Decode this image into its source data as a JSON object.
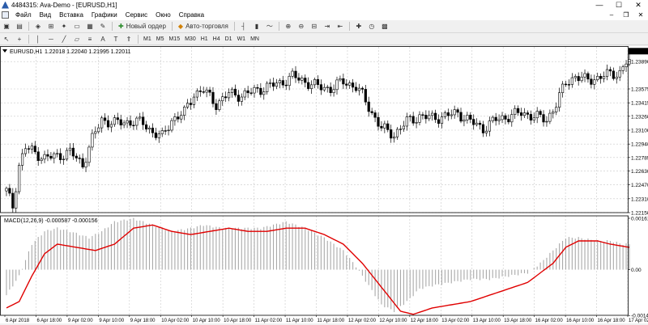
{
  "window": {
    "title": "4484315: Ava-Demo - [EURUSD,H1]",
    "minimize": "—",
    "maximize": "☐",
    "close": "✕"
  },
  "menu": [
    "Файл",
    "Вид",
    "Вставка",
    "Графики",
    "Сервис",
    "Окно",
    "Справка"
  ],
  "mdi": {
    "minimize": "–",
    "restore": "❐",
    "close": "✕"
  },
  "toolbar": {
    "new_order": "Новый ордер",
    "autotrading": "Авто-торговля"
  },
  "timeframes": [
    "M1",
    "M5",
    "M15",
    "M30",
    "H1",
    "H4",
    "D1",
    "W1",
    "MN"
  ],
  "icons": {
    "toolbar1": [
      "new-chart-icon",
      "profiles-icon",
      "market-watch-icon",
      "data-window-icon",
      "navigator-icon",
      "terminal-icon",
      "strategy-tester-icon",
      "metaeditor-icon",
      "zoom-in-icon",
      "zoom-out-icon",
      "tile-windows-icon",
      "bar-chart-icon",
      "candlestick-icon",
      "line-chart-icon",
      "indicators-icon",
      "periods-icon",
      "templates-icon"
    ],
    "toolbar2": [
      "cursor-icon",
      "crosshair-icon",
      "vertical-line-icon",
      "horizontal-line-icon",
      "trendline-icon",
      "channel-icon",
      "fibonacci-icon",
      "text-icon",
      "label-icon",
      "arrows-icon"
    ]
  },
  "colors": {
    "macd_signal": "#e00000",
    "histogram": "#a9a9a9",
    "candle": "#000000",
    "grid": "#c8c8c8"
  },
  "chart_data": {
    "type": "candlestick",
    "symbol_label": "EURUSD,H1",
    "ohlc_label": "1.22018 1.22040 1.21995 1.22011",
    "ylim": [
      1.2215,
      1.2405
    ],
    "price_ticks": [
      "1.23890",
      "1.23575",
      "1.23415",
      "1.23260",
      "1.23100",
      "1.22940",
      "1.22785",
      "1.22630",
      "1.22470",
      "1.22310",
      "1.22150"
    ],
    "time_labels": [
      "6 Apr 2018",
      "6 Apr 18:00",
      "9 Apr 02:00",
      "9 Apr 10:00",
      "9 Apr 18:00",
      "10 Apr 02:00",
      "10 Apr 10:00",
      "10 Apr 18:00",
      "11 Apr 02:00",
      "11 Apr 10:00",
      "11 Apr 18:00",
      "12 Apr 02:00",
      "12 Apr 10:00",
      "12 Apr 18:00",
      "13 Apr 02:00",
      "13 Apr 10:00",
      "13 Apr 18:00",
      "16 Apr 02:00",
      "16 Apr 10:00",
      "16 Apr 18:00",
      "17 Apr 02:00"
    ],
    "close_keypoints": [
      [
        0,
        1.224
      ],
      [
        2,
        1.2222
      ],
      [
        4,
        1.227
      ],
      [
        6,
        1.229
      ],
      [
        9,
        1.2284
      ],
      [
        12,
        1.2278
      ],
      [
        16,
        1.228
      ],
      [
        20,
        1.2285
      ],
      [
        24,
        1.227
      ],
      [
        27,
        1.23
      ],
      [
        30,
        1.2322
      ],
      [
        34,
        1.2318
      ],
      [
        40,
        1.232
      ],
      [
        43,
        1.2318
      ],
      [
        46,
        1.2308
      ],
      [
        49,
        1.2302
      ],
      [
        52,
        1.2322
      ],
      [
        56,
        1.233
      ],
      [
        59,
        1.2352
      ],
      [
        62,
        1.2356
      ],
      [
        66,
        1.234
      ],
      [
        70,
        1.2352
      ],
      [
        74,
        1.235
      ],
      [
        78,
        1.2355
      ],
      [
        82,
        1.236
      ],
      [
        86,
        1.2364
      ],
      [
        90,
        1.2372
      ],
      [
        94,
        1.2366
      ],
      [
        98,
        1.236
      ],
      [
        102,
        1.2358
      ],
      [
        106,
        1.2366
      ],
      [
        110,
        1.236
      ],
      [
        112,
        1.235
      ],
      [
        115,
        1.233
      ],
      [
        118,
        1.2312
      ],
      [
        122,
        1.2305
      ],
      [
        126,
        1.232
      ],
      [
        130,
        1.2326
      ],
      [
        134,
        1.2324
      ],
      [
        138,
        1.2326
      ],
      [
        142,
        1.233
      ],
      [
        146,
        1.232
      ],
      [
        150,
        1.2312
      ],
      [
        154,
        1.2322
      ],
      [
        158,
        1.2326
      ],
      [
        162,
        1.233
      ],
      [
        166,
        1.2326
      ],
      [
        170,
        1.2322
      ],
      [
        173,
        1.234
      ],
      [
        176,
        1.2365
      ],
      [
        179,
        1.2372
      ],
      [
        182,
        1.2368
      ],
      [
        186,
        1.237
      ],
      [
        190,
        1.2375
      ],
      [
        193,
        1.2376
      ],
      [
        195,
        1.2388
      ]
    ],
    "macd": {
      "label": "MACD(12,26,9) -0.000587 -0.000156",
      "ylim": [
        -0.00143,
        0.00161
      ],
      "ticks": [
        "0.00161",
        "0.00",
        "-0.001436"
      ],
      "hist_keypoints": [
        [
          0,
          -0.0008
        ],
        [
          4,
          -0.0002
        ],
        [
          8,
          0.0008
        ],
        [
          12,
          0.0012
        ],
        [
          16,
          0.0013
        ],
        [
          20,
          0.0012
        ],
        [
          26,
          0.001
        ],
        [
          30,
          0.0012
        ],
        [
          34,
          0.0015
        ],
        [
          40,
          0.0016
        ],
        [
          46,
          0.0014
        ],
        [
          52,
          0.0012
        ],
        [
          58,
          0.0013
        ],
        [
          62,
          0.0014
        ],
        [
          68,
          0.0013
        ],
        [
          74,
          0.0013
        ],
        [
          80,
          0.0013
        ],
        [
          84,
          0.0014
        ],
        [
          88,
          0.0015
        ],
        [
          94,
          0.0013
        ],
        [
          100,
          0.001
        ],
        [
          106,
          0.0006
        ],
        [
          110,
          0.0001
        ],
        [
          114,
          -0.0005
        ],
        [
          118,
          -0.0011
        ],
        [
          122,
          -0.0013
        ],
        [
          126,
          -0.001
        ],
        [
          130,
          -0.0006
        ],
        [
          134,
          -0.0005
        ],
        [
          140,
          -0.0004
        ],
        [
          146,
          -0.0003
        ],
        [
          152,
          -0.0003
        ],
        [
          158,
          -0.0002
        ],
        [
          164,
          -0.0001
        ],
        [
          168,
          0.0002
        ],
        [
          172,
          0.0006
        ],
        [
          176,
          0.001
        ],
        [
          180,
          0.001
        ],
        [
          186,
          0.0009
        ],
        [
          190,
          0.0009
        ],
        [
          194,
          0.0008
        ],
        [
          196,
          0.0008
        ]
      ],
      "signal_keypoints": [
        [
          0,
          -0.0012
        ],
        [
          4,
          -0.001
        ],
        [
          8,
          -0.0002
        ],
        [
          12,
          0.0005
        ],
        [
          16,
          0.0008
        ],
        [
          22,
          0.0007
        ],
        [
          28,
          0.0006
        ],
        [
          34,
          0.0008
        ],
        [
          40,
          0.0013
        ],
        [
          46,
          0.0014
        ],
        [
          52,
          0.0012
        ],
        [
          58,
          0.0011
        ],
        [
          64,
          0.0012
        ],
        [
          70,
          0.0013
        ],
        [
          76,
          0.0012
        ],
        [
          82,
          0.0012
        ],
        [
          88,
          0.0013
        ],
        [
          94,
          0.0013
        ],
        [
          100,
          0.0011
        ],
        [
          106,
          0.0008
        ],
        [
          112,
          0.0002
        ],
        [
          116,
          -0.0003
        ],
        [
          120,
          -0.0008
        ],
        [
          124,
          -0.0013
        ],
        [
          128,
          -0.0014
        ],
        [
          134,
          -0.0012
        ],
        [
          140,
          -0.0011
        ],
        [
          146,
          -0.001
        ],
        [
          152,
          -0.0008
        ],
        [
          158,
          -0.0006
        ],
        [
          164,
          -0.0004
        ],
        [
          168,
          -0.0001
        ],
        [
          172,
          0.0002
        ],
        [
          176,
          0.0007
        ],
        [
          180,
          0.0009
        ],
        [
          186,
          0.0009
        ],
        [
          190,
          0.0008
        ],
        [
          196,
          0.0007
        ]
      ]
    }
  }
}
